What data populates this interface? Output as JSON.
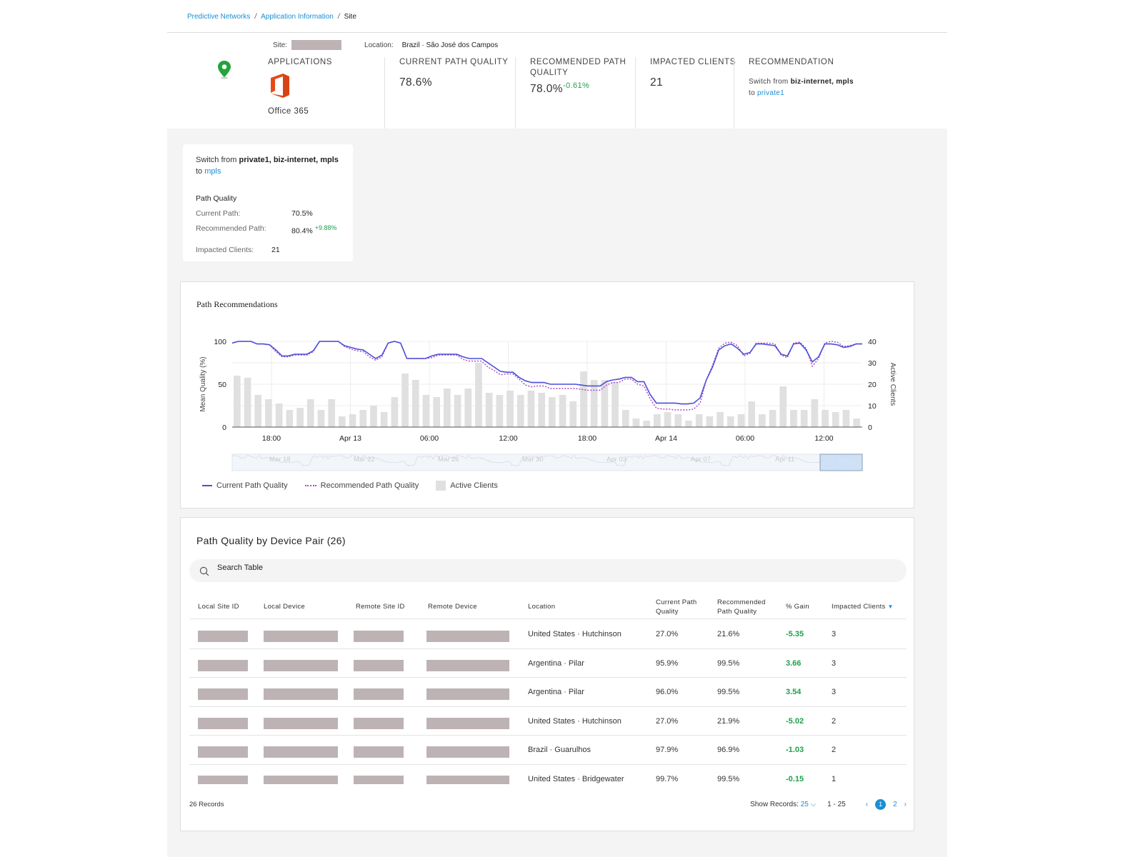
{
  "breadcrumb": {
    "items": [
      "Predictive Networks",
      "Application Information"
    ],
    "current": "Site"
  },
  "site": {
    "label": "Site:",
    "location_label": "Location:",
    "location_value": "Brazil · São José dos Campos"
  },
  "summary": {
    "applications_label": "APPLICATIONS",
    "app_name": "Office 365",
    "current_path_label": "CURRENT PATH QUALITY",
    "current_path_value": "78.6%",
    "recommended_path_label": "RECOMMENDED PATH QUALITY",
    "recommended_path_value": "78.0%",
    "recommended_path_delta": "-0.61%",
    "impacted_label": "IMPACTED CLIENTS",
    "impacted_value": "21",
    "recommendation_label": "RECOMMENDATION",
    "recommendation_prefix": "Switch from",
    "recommendation_from": "biz-internet, mpls",
    "recommendation_to_word": "to",
    "recommendation_to": "private1"
  },
  "switch_card": {
    "prefix": "Switch from",
    "from": "private1, biz-internet, mpls",
    "to_word": "to",
    "to": "mpls",
    "pq_title": "Path Quality",
    "current_label": "Current Path:",
    "current_value": "70.5%",
    "recommended_label": "Recommended Path:",
    "recommended_value": "80.4%",
    "recommended_delta": "+9.88%",
    "impacted_label": "Impacted Clients:",
    "impacted_value": "21"
  },
  "chart_data": {
    "type": "line",
    "title": "Path Recommendations",
    "ylabel": "Mean Quality (%)",
    "y2label": "Active Clients",
    "ylim": [
      0,
      100
    ],
    "y2lim": [
      0,
      40
    ],
    "yticks": [
      "100",
      "50",
      "0"
    ],
    "y2ticks": [
      "40",
      "30",
      "20",
      "10",
      "0"
    ],
    "x_tick_labels": [
      "18:00",
      "Apr 13",
      "06:00",
      "12:00",
      "18:00",
      "Apr 14",
      "06:00",
      "12:00"
    ],
    "navigator_labels": [
      "Mar 18",
      "Mar 22",
      "Mar 26",
      "Mar 30",
      "Apr 03",
      "Apr 07",
      "Apr 11"
    ],
    "legend": [
      "Current Path Quality",
      "Recommended Path Quality",
      "Active Clients"
    ],
    "colors": {
      "current": "#4a4fd8",
      "recommended": "#b040c8",
      "clients": "#e0e0e0"
    },
    "series": [
      {
        "name": "Current Path Quality",
        "values": [
          98,
          100,
          100,
          100,
          97,
          97,
          96,
          90,
          83,
          83,
          85,
          85,
          85,
          89,
          100,
          100,
          100,
          100,
          95,
          93,
          91,
          90,
          85,
          80,
          84,
          98,
          100,
          98,
          80,
          80,
          80,
          80,
          83,
          85,
          85,
          85,
          85,
          82,
          80,
          80,
          80,
          75,
          70,
          65,
          64,
          64,
          58,
          54,
          52,
          52,
          52,
          50,
          50,
          50,
          50,
          50,
          49,
          48,
          48,
          48,
          53,
          55,
          56,
          58,
          58,
          53,
          53,
          38,
          28,
          28,
          28,
          28,
          27,
          27,
          28,
          34,
          55,
          70,
          90,
          95,
          97,
          92,
          85,
          87,
          97,
          97,
          96,
          95,
          85,
          83,
          97,
          98,
          90,
          76,
          82,
          97,
          97,
          96,
          93,
          94,
          97,
          97
        ]
      },
      {
        "name": "Recommended Path Quality",
        "values": [
          98,
          100,
          100,
          100,
          97,
          97,
          96,
          88,
          82,
          82,
          84,
          84,
          84,
          88,
          100,
          100,
          100,
          100,
          94,
          91,
          89,
          88,
          82,
          78,
          82,
          98,
          100,
          98,
          80,
          80,
          80,
          80,
          81,
          84,
          84,
          84,
          84,
          79,
          77,
          77,
          77,
          70,
          66,
          61,
          62,
          62,
          56,
          49,
          47,
          48,
          48,
          45,
          45,
          45,
          45,
          45,
          44,
          43,
          43,
          43,
          49,
          52,
          52,
          56,
          56,
          50,
          48,
          33,
          22,
          21,
          21,
          20,
          20,
          20,
          21,
          28,
          55,
          72,
          92,
          98,
          99,
          95,
          83,
          86,
          98,
          98,
          98,
          97,
          84,
          81,
          98,
          99,
          92,
          71,
          80,
          98,
          100,
          99,
          94,
          95,
          97,
          97
        ]
      },
      {
        "name": "Active Clients",
        "values": [
          24,
          23,
          15,
          13,
          11,
          8,
          9,
          13,
          8,
          13,
          5,
          6,
          8,
          10,
          7,
          14,
          25,
          22,
          15,
          14,
          18,
          15,
          18,
          30,
          16,
          15,
          17,
          15,
          17,
          16,
          14,
          15,
          12,
          26,
          22,
          22,
          21,
          8,
          4,
          3,
          6,
          7,
          6,
          3,
          6,
          5,
          7,
          5,
          6,
          12,
          6,
          8,
          19,
          8,
          8,
          13,
          8,
          7,
          8,
          4
        ]
      }
    ]
  },
  "table": {
    "title": "Path Quality by Device Pair (26)",
    "search_placeholder": "Search Table",
    "columns": [
      "Local Site ID",
      "Local Device",
      "Remote Site ID",
      "Remote Device",
      "Location",
      "Current Path Quality",
      "Recommended Path Quality",
      "% Gain",
      "Impacted Clients"
    ],
    "rows": [
      {
        "location": "United States · Hutchinson",
        "current": "27.0%",
        "recommended": "21.6%",
        "gain": "-5.35",
        "clients": "3"
      },
      {
        "location": "Argentina · Pilar",
        "current": "95.9%",
        "recommended": "99.5%",
        "gain": "3.66",
        "clients": "3"
      },
      {
        "location": "Argentina · Pilar",
        "current": "96.0%",
        "recommended": "99.5%",
        "gain": "3.54",
        "clients": "3"
      },
      {
        "location": "United States · Hutchinson",
        "current": "27.0%",
        "recommended": "21.9%",
        "gain": "-5.02",
        "clients": "2"
      },
      {
        "location": "Brazil · Guarulhos",
        "current": "97.9%",
        "recommended": "96.9%",
        "gain": "-1.03",
        "clients": "2"
      },
      {
        "location": "United States · Bridgewater",
        "current": "99.7%",
        "recommended": "99.5%",
        "gain": "-0.15",
        "clients": "1"
      }
    ],
    "records": "26 Records",
    "show_records_label": "Show Records:",
    "show_records_value": "25",
    "range": "1 - 25",
    "pages": [
      "1",
      "2"
    ]
  }
}
